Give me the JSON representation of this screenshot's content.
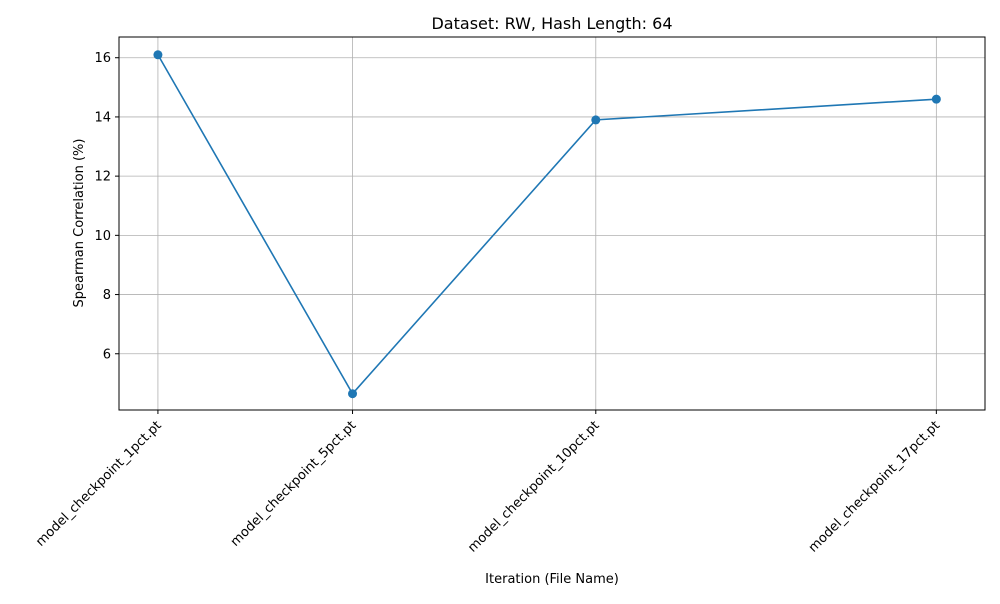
{
  "chart_data": {
    "type": "line",
    "title": "Dataset: RW, Hash Length: 64",
    "xlabel": "Iteration (File Name)",
    "ylabel": "Spearman Correlation (%)",
    "categories": [
      "model_checkpoint_1pct.pt",
      "model_checkpoint_5pct.pt",
      "model_checkpoint_10pct.pt",
      "model_checkpoint_17pct.pt"
    ],
    "x": [
      1,
      5,
      10,
      17
    ],
    "values": [
      16.1,
      4.65,
      13.9,
      14.6
    ],
    "xlim": [
      0.2,
      18.0
    ],
    "ylim": [
      4.1,
      16.7
    ],
    "yticks": [
      6,
      8,
      10,
      12,
      14,
      16
    ],
    "grid": true,
    "marker": "circle",
    "line_color": "#1f77b4"
  }
}
